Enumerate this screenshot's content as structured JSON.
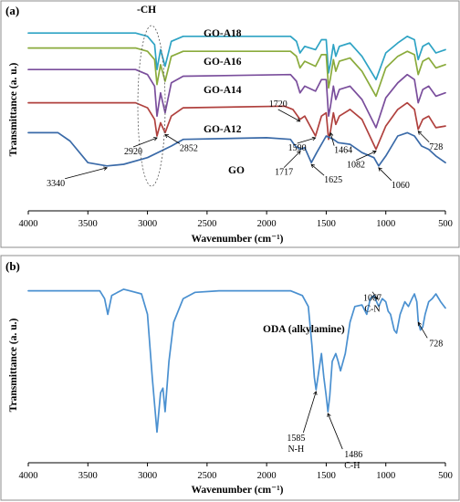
{
  "chart_data": [
    {
      "type": "line",
      "panel": "(a)",
      "xlabel": "Wavenumber (cm⁻¹)",
      "ylabel": "Transmittance (a. u.)",
      "xlim": [
        4000,
        500
      ],
      "x_reversed": true,
      "xticks": [
        4000,
        3500,
        3000,
        2500,
        2000,
        1500,
        1000,
        500
      ],
      "grid": false,
      "legend": "none (labels placed on curves)",
      "region_label": "-CH",
      "series": [
        {
          "name": "GO-A18",
          "color": "#2ea3c4",
          "points": [
            [
              4000,
              90
            ],
            [
              3100,
              90
            ],
            [
              3000,
              88
            ],
            [
              2940,
              83
            ],
            [
              2920,
              68
            ],
            [
              2890,
              80
            ],
            [
              2852,
              70
            ],
            [
              2800,
              85
            ],
            [
              2700,
              88
            ],
            [
              1800,
              88
            ],
            [
              1750,
              85
            ],
            [
              1720,
              78
            ],
            [
              1680,
              82
            ],
            [
              1590,
              80
            ],
            [
              1540,
              86
            ],
            [
              1500,
              86
            ],
            [
              1480,
              66
            ],
            [
              1464,
              72
            ],
            [
              1440,
              83
            ],
            [
              1420,
              76
            ],
            [
              1390,
              82
            ],
            [
              1300,
              84
            ],
            [
              1200,
              76
            ],
            [
              1082,
              62
            ],
            [
              1000,
              78
            ],
            [
              900,
              84
            ],
            [
              820,
              88
            ],
            [
              760,
              86
            ],
            [
              728,
              74
            ],
            [
              690,
              82
            ],
            [
              640,
              84
            ],
            [
              580,
              78
            ],
            [
              500,
              80
            ]
          ]
        },
        {
          "name": "GO-A16",
          "color": "#8aab3c",
          "points": [
            [
              4000,
              81
            ],
            [
              3100,
              81
            ],
            [
              3000,
              79
            ],
            [
              2940,
              74
            ],
            [
              2920,
              59
            ],
            [
              2890,
              71
            ],
            [
              2852,
              61
            ],
            [
              2800,
              76
            ],
            [
              2700,
              79
            ],
            [
              1800,
              79
            ],
            [
              1750,
              76
            ],
            [
              1720,
              69
            ],
            [
              1680,
              73
            ],
            [
              1590,
              70
            ],
            [
              1540,
              77
            ],
            [
              1500,
              77
            ],
            [
              1480,
              57
            ],
            [
              1464,
              63
            ],
            [
              1440,
              74
            ],
            [
              1420,
              67
            ],
            [
              1390,
              73
            ],
            [
              1300,
              75
            ],
            [
              1200,
              67
            ],
            [
              1082,
              52
            ],
            [
              1000,
              69
            ],
            [
              900,
              76
            ],
            [
              820,
              79
            ],
            [
              760,
              77
            ],
            [
              728,
              65
            ],
            [
              690,
              73
            ],
            [
              640,
              75
            ],
            [
              580,
              69
            ],
            [
              500,
              71
            ]
          ]
        },
        {
          "name": "GO-A14",
          "color": "#7a4e9c",
          "points": [
            [
              4000,
              68
            ],
            [
              3100,
              68
            ],
            [
              3000,
              65
            ],
            [
              2940,
              58
            ],
            [
              2920,
              40
            ],
            [
              2890,
              54
            ],
            [
              2852,
              42
            ],
            [
              2800,
              60
            ],
            [
              2700,
              64
            ],
            [
              1800,
              65
            ],
            [
              1750,
              61
            ],
            [
              1720,
              54
            ],
            [
              1680,
              58
            ],
            [
              1590,
              55
            ],
            [
              1540,
              62
            ],
            [
              1500,
              62
            ],
            [
              1480,
              40
            ],
            [
              1464,
              46
            ],
            [
              1440,
              58
            ],
            [
              1420,
              50
            ],
            [
              1390,
              56
            ],
            [
              1300,
              58
            ],
            [
              1200,
              50
            ],
            [
              1082,
              33
            ],
            [
              1000,
              51
            ],
            [
              900,
              60
            ],
            [
              820,
              65
            ],
            [
              760,
              62
            ],
            [
              728,
              48
            ],
            [
              690,
              56
            ],
            [
              640,
              58
            ],
            [
              580,
              52
            ],
            [
              500,
              54
            ]
          ]
        },
        {
          "name": "GO-A12",
          "color": "#b0413e",
          "points": [
            [
              4000,
              48
            ],
            [
              3100,
              48
            ],
            [
              3000,
              45
            ],
            [
              2940,
              38
            ],
            [
              2920,
              28
            ],
            [
              2890,
              36
            ],
            [
              2852,
              30
            ],
            [
              2800,
              40
            ],
            [
              2700,
              45
            ],
            [
              1850,
              46
            ],
            [
              1780,
              44
            ],
            [
              1720,
              38
            ],
            [
              1680,
              40
            ],
            [
              1590,
              28
            ],
            [
              1540,
              40
            ],
            [
              1500,
              42
            ],
            [
              1480,
              26
            ],
            [
              1464,
              31
            ],
            [
              1440,
              42
            ],
            [
              1420,
              35
            ],
            [
              1390,
              40
            ],
            [
              1300,
              44
            ],
            [
              1200,
              38
            ],
            [
              1082,
              20
            ],
            [
              1000,
              34
            ],
            [
              900,
              44
            ],
            [
              820,
              48
            ],
            [
              760,
              44
            ],
            [
              728,
              32
            ],
            [
              690,
              38
            ],
            [
              640,
              40
            ],
            [
              580,
              33
            ],
            [
              500,
              34
            ]
          ]
        },
        {
          "name": "GO",
          "color": "#3a6aa8",
          "points": [
            [
              4000,
              30
            ],
            [
              3750,
              30
            ],
            [
              3650,
              25
            ],
            [
              3500,
              12
            ],
            [
              3340,
              10
            ],
            [
              3200,
              11
            ],
            [
              3000,
              15
            ],
            [
              2800,
              22
            ],
            [
              2700,
              26
            ],
            [
              2000,
              27
            ],
            [
              1800,
              26
            ],
            [
              1760,
              22
            ],
            [
              1717,
              20
            ],
            [
              1680,
              21
            ],
            [
              1625,
              12
            ],
            [
              1580,
              18
            ],
            [
              1500,
              28
            ],
            [
              1440,
              26
            ],
            [
              1400,
              24
            ],
            [
              1300,
              23
            ],
            [
              1200,
              18
            ],
            [
              1100,
              15
            ],
            [
              1060,
              10
            ],
            [
              1000,
              16
            ],
            [
              900,
              28
            ],
            [
              820,
              30
            ],
            [
              760,
              28
            ],
            [
              700,
              22
            ],
            [
              640,
              20
            ],
            [
              580,
              16
            ],
            [
              500,
              12
            ]
          ]
        }
      ],
      "annotations": [
        {
          "text": "3340",
          "x": 3340,
          "series": "GO"
        },
        {
          "text": "1717",
          "x": 1717,
          "series": "GO"
        },
        {
          "text": "1625",
          "x": 1625,
          "series": "GO"
        },
        {
          "text": "1060",
          "x": 1060,
          "series": "GO"
        },
        {
          "text": "2920",
          "x": 2920,
          "series": "GO-A12"
        },
        {
          "text": "2852",
          "x": 2852,
          "series": "GO-A12"
        },
        {
          "text": "1720",
          "x": 1720,
          "series": "GO-A12"
        },
        {
          "text": "1590",
          "x": 1590,
          "series": "GO-A12"
        },
        {
          "text": "1464",
          "x": 1464,
          "series": "GO-A12"
        },
        {
          "text": "1082",
          "x": 1082,
          "series": "GO-A12"
        },
        {
          "text": "728",
          "x": 728,
          "series": "GO-A12"
        }
      ]
    },
    {
      "type": "line",
      "panel": "(b)",
      "xlabel": "Wavenumber (cm⁻¹)",
      "ylabel": "Transmittance (a. u.)",
      "xlim": [
        4000,
        500
      ],
      "x_reversed": true,
      "xticks": [
        4000,
        3500,
        3000,
        2500,
        2000,
        1500,
        1000,
        500
      ],
      "grid": false,
      "legend": "none",
      "series": [
        {
          "name": "ODA (alkylamine)",
          "color": "#4a90d0",
          "points": [
            [
              4000,
              95
            ],
            [
              3400,
              95
            ],
            [
              3360,
              90
            ],
            [
              3333,
              80
            ],
            [
              3300,
              92
            ],
            [
              3250,
              94
            ],
            [
              3200,
              96
            ],
            [
              3150,
              95
            ],
            [
              3050,
              93
            ],
            [
              3000,
              80
            ],
            [
              2960,
              40
            ],
            [
              2920,
              5
            ],
            [
              2890,
              30
            ],
            [
              2870,
              33
            ],
            [
              2852,
              18
            ],
            [
              2820,
              50
            ],
            [
              2780,
              75
            ],
            [
              2700,
              90
            ],
            [
              2600,
              94
            ],
            [
              2400,
              95
            ],
            [
              2000,
              95
            ],
            [
              1800,
              95
            ],
            [
              1700,
              92
            ],
            [
              1650,
              85
            ],
            [
              1620,
              60
            ],
            [
              1600,
              40
            ],
            [
              1585,
              32
            ],
            [
              1560,
              45
            ],
            [
              1540,
              55
            ],
            [
              1520,
              40
            ],
            [
              1500,
              28
            ],
            [
              1486,
              18
            ],
            [
              1470,
              28
            ],
            [
              1450,
              50
            ],
            [
              1420,
              55
            ],
            [
              1400,
              50
            ],
            [
              1380,
              44
            ],
            [
              1340,
              55
            ],
            [
              1300,
              75
            ],
            [
              1260,
              85
            ],
            [
              1200,
              86
            ],
            [
              1160,
              80
            ],
            [
              1130,
              90
            ],
            [
              1100,
              92
            ],
            [
              1060,
              85
            ],
            [
              1030,
              90
            ],
            [
              1000,
              88
            ],
            [
              980,
              82
            ],
            [
              960,
              80
            ],
            [
              930,
              70
            ],
            [
              910,
              68
            ],
            [
              880,
              80
            ],
            [
              840,
              88
            ],
            [
              810,
              85
            ],
            [
              780,
              90
            ],
            [
              760,
              93
            ],
            [
              740,
              88
            ],
            [
              728,
              76
            ],
            [
              710,
              70
            ],
            [
              690,
              72
            ],
            [
              670,
              80
            ],
            [
              640,
              88
            ],
            [
              610,
              90
            ],
            [
              580,
              93
            ],
            [
              540,
              88
            ],
            [
              500,
              84
            ]
          ]
        }
      ],
      "annotations": [
        {
          "text": "1585",
          "sub": "N-H",
          "x": 1585
        },
        {
          "text": "1486",
          "sub": "C-H",
          "x": 1486
        },
        {
          "text": "1067",
          "sub": "C-N",
          "x": 1067
        },
        {
          "text": "728",
          "x": 728
        }
      ]
    }
  ],
  "figure": {
    "panel_a_label": "(a)",
    "panel_b_label": "(b)",
    "panel_a_region_label": "-CH",
    "x_tick_labels": [
      "4000",
      "3500",
      "3000",
      "2500",
      "2000",
      "1500",
      "1000",
      "500"
    ],
    "xlabel": "Wavenumber (cm⁻¹)",
    "ylabel": "Transmittance (a. u.)"
  }
}
